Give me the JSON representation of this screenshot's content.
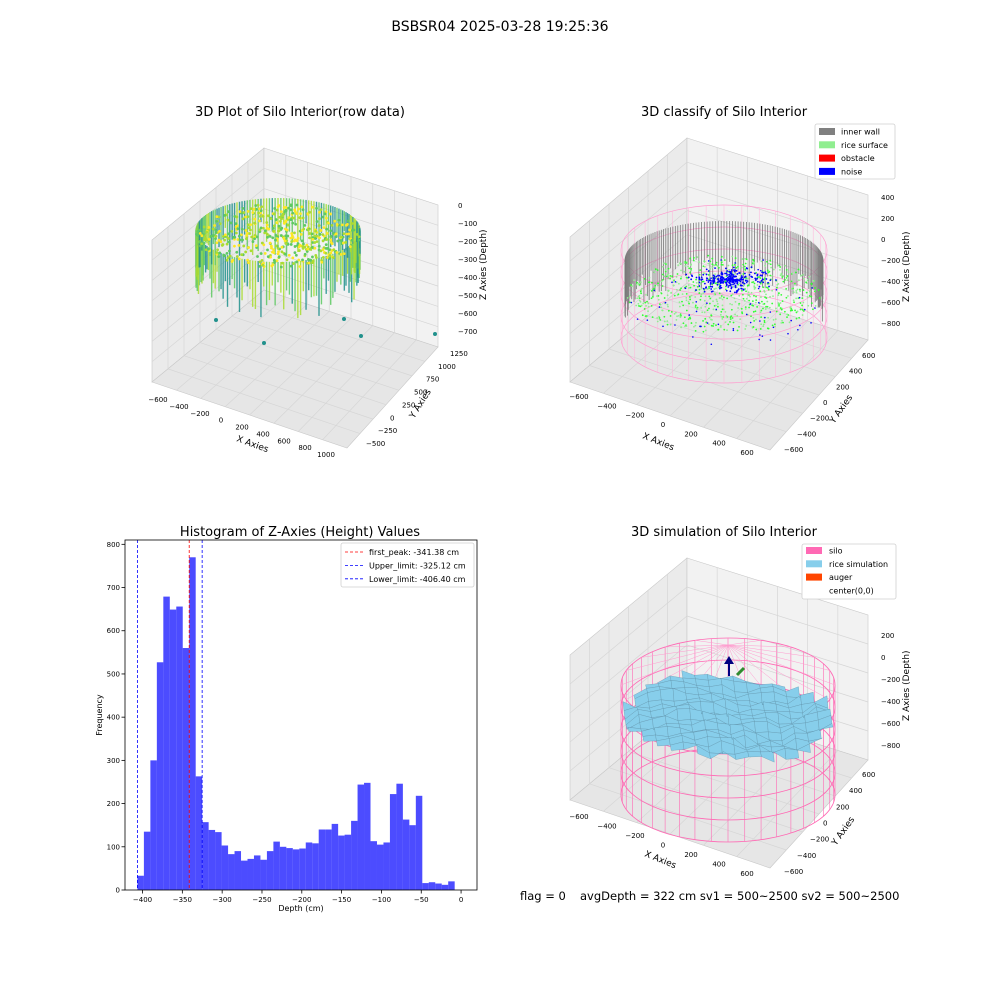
{
  "suptitle": "BSBSR04 2025-03-28 19:25:36",
  "chart_data": [
    {
      "type": "scatter3d",
      "title": "3D Plot of Silo Interior(row data)",
      "xlabel": "X Axies",
      "ylabel": "Y Axies",
      "zlabel": "Z Axies (Depth)",
      "x_ticks": [
        "−600",
        "−400",
        "−200",
        "0",
        "200",
        "400",
        "600",
        "800",
        "1000"
      ],
      "y_ticks": [
        "−500",
        "−250",
        "0",
        "250",
        "500",
        "750",
        "1000",
        "1250"
      ],
      "z_ticks": [
        "0",
        "−100",
        "−200",
        "−300",
        "−400",
        "−500",
        "−600",
        "−700"
      ],
      "colormap": "viridis",
      "grid": true
    },
    {
      "type": "scatter3d",
      "title": "3D classify of Silo Interior",
      "xlabel": "X Axies",
      "ylabel": "Y Axies",
      "zlabel": "Z Axies (Depth)",
      "x_ticks": [
        "−600",
        "−400",
        "−200",
        "0",
        "200",
        "400",
        "600"
      ],
      "y_ticks": [
        "−600",
        "−400",
        "−200",
        "0",
        "200",
        "400",
        "600"
      ],
      "z_ticks": [
        "400",
        "200",
        "0",
        "−200",
        "−400",
        "−600",
        "−800"
      ],
      "legend_position": "top-right",
      "legend": [
        {
          "name": "inner wall",
          "color": "#808080"
        },
        {
          "name": "rice surface",
          "color": "#90ee90"
        },
        {
          "name": "obstacle",
          "color": "#ff0000"
        },
        {
          "name": "noise",
          "color": "#0000ff"
        }
      ],
      "grid": true
    },
    {
      "type": "bar",
      "title": "Histogram of Z-Axies (Height) Values",
      "xlabel": "Depth (cm)",
      "ylabel": "Frequency",
      "xlim": [
        -422,
        20
      ],
      "ylim": [
        0,
        810
      ],
      "x_ticks": [
        -400,
        -350,
        -300,
        -250,
        -200,
        -150,
        -100,
        -50,
        0
      ],
      "x_tick_labels": [
        "−400",
        "−350",
        "−300",
        "−250",
        "−200",
        "−150",
        "−100",
        "−50",
        "0"
      ],
      "y_ticks": [
        0,
        100,
        200,
        300,
        400,
        500,
        600,
        700,
        800
      ],
      "bin_start": -406.4,
      "bin_width": 8.13,
      "values": [
        33,
        135,
        300,
        527,
        679,
        649,
        656,
        560,
        770,
        263,
        157,
        139,
        134,
        103,
        83,
        90,
        68,
        72,
        80,
        70,
        90,
        112,
        100,
        97,
        94,
        96,
        110,
        108,
        140,
        140,
        153,
        126,
        128,
        160,
        244,
        248,
        113,
        105,
        110,
        222,
        246,
        163,
        150,
        218,
        16,
        18,
        15,
        12,
        20
      ],
      "bar_color": "#0000ff",
      "bar_alpha": 0.7,
      "lines": [
        {
          "label": "first_peak: -341.38 cm",
          "x": -341.38,
          "color": "#ff0000"
        },
        {
          "label": "Upper_limit: -325.12 cm",
          "x": -325.12,
          "color": "#0000ff"
        },
        {
          "label": "Lower_limit: -406.40 cm",
          "x": -406.4,
          "color": "#0000ff"
        }
      ],
      "legend_position": "top-right",
      "grid": false
    },
    {
      "type": "surface3d",
      "title": "3D simulation of Silo Interior",
      "xlabel": "X Axies",
      "ylabel": "Y Axies",
      "zlabel": "Z Axies (Depth)",
      "x_ticks": [
        "−600",
        "−400",
        "−200",
        "0",
        "200",
        "400",
        "600"
      ],
      "y_ticks": [
        "−600",
        "−400",
        "−200",
        "0",
        "200",
        "400",
        "600"
      ],
      "z_ticks": [
        "200",
        "0",
        "−200",
        "−400",
        "−600",
        "−800"
      ],
      "legend_position": "top-right",
      "legend": [
        {
          "name": "silo",
          "color": "#ff69b4"
        },
        {
          "name": "rice simulation",
          "color": "#87ceeb"
        },
        {
          "name": "auger",
          "color": "#ff4500"
        },
        {
          "name": "center(0,0)",
          "color": ""
        }
      ],
      "grid": true
    }
  ],
  "footer": {
    "flag": "flag = 0",
    "avg": "avgDepth = 322 cm  sv1 = 500~2500  sv2 = 500~2500"
  }
}
